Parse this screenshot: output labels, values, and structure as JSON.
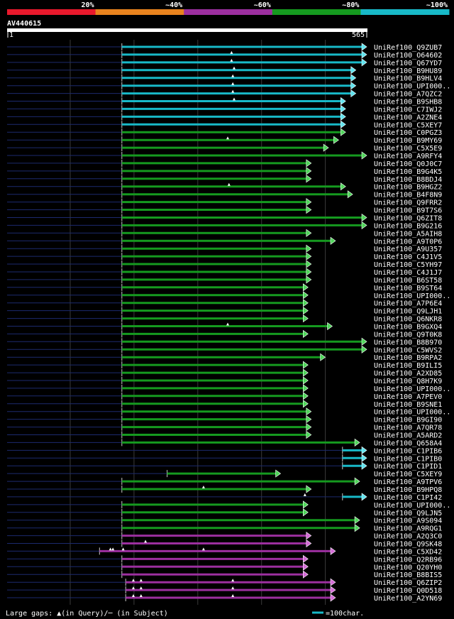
{
  "chart_data": {
    "type": "alignment",
    "query_name": "AV440615",
    "query_start": "1",
    "query_end": "565",
    "query_length": 565,
    "identity_scale": [
      {
        "label": "20%",
        "color": "#e8192c"
      },
      {
        "label": "~40%",
        "color": "#e8831e"
      },
      {
        "label": "~60%",
        "color": "#9c2f9f"
      },
      {
        "label": "~80%",
        "color": "#159a1f"
      },
      {
        "label": "~100%",
        "color": "#18b9c8"
      }
    ],
    "hits": [
      {
        "name": "UniRef100_Q9ZUB7",
        "start": 181,
        "end": 565,
        "color": "cyan"
      },
      {
        "name": "UniRef100_O64602",
        "start": 181,
        "end": 565,
        "color": "cyan",
        "gaps": [
          353
        ]
      },
      {
        "name": "UniRef100_Q67YD7",
        "start": 181,
        "end": 565,
        "color": "cyan",
        "gaps": [
          353
        ]
      },
      {
        "name": "UniRef100_B9HU89",
        "start": 181,
        "end": 548,
        "color": "cyan",
        "gaps": [
          357
        ]
      },
      {
        "name": "UniRef100_B9HLV4",
        "start": 181,
        "end": 548,
        "color": "cyan",
        "gaps": [
          355
        ]
      },
      {
        "name": "UniRef100_UPI000..",
        "start": 181,
        "end": 548,
        "color": "cyan",
        "gaps": [
          355
        ]
      },
      {
        "name": "UniRef100_A7QZC2",
        "start": 181,
        "end": 548,
        "color": "cyan",
        "gaps": [
          355
        ]
      },
      {
        "name": "UniRef100_B9SHB8",
        "start": 181,
        "end": 532,
        "color": "cyan",
        "gaps": [
          357
        ]
      },
      {
        "name": "UniRef100_C7IWJ2",
        "start": 181,
        "end": 532,
        "color": "cyan"
      },
      {
        "name": "UniRef100_A2ZNE4",
        "start": 181,
        "end": 532,
        "color": "cyan"
      },
      {
        "name": "UniRef100_C5XEY7",
        "start": 181,
        "end": 532,
        "color": "cyan"
      },
      {
        "name": "UniRef100_C0PGZ3",
        "start": 181,
        "end": 532,
        "color": "green"
      },
      {
        "name": "UniRef100_B9MY69",
        "start": 181,
        "end": 521,
        "color": "green",
        "gaps": [
          347
        ]
      },
      {
        "name": "UniRef100_C5X5E9",
        "start": 181,
        "end": 505,
        "color": "green"
      },
      {
        "name": "UniRef100_A9RFY4",
        "start": 181,
        "end": 565,
        "color": "green"
      },
      {
        "name": "UniRef100_Q0J0C7",
        "start": 181,
        "end": 478,
        "color": "green"
      },
      {
        "name": "UniRef100_B9G4K5",
        "start": 181,
        "end": 478,
        "color": "green"
      },
      {
        "name": "UniRef100_B8BDJ4",
        "start": 181,
        "end": 478,
        "color": "green"
      },
      {
        "name": "UniRef100_B9HGZ2",
        "start": 181,
        "end": 532,
        "color": "green",
        "gaps": [
          349
        ]
      },
      {
        "name": "UniRef100_B4F8N9",
        "start": 181,
        "end": 543,
        "color": "green"
      },
      {
        "name": "UniRef100_Q9FRR2",
        "start": 181,
        "end": 478,
        "color": "green"
      },
      {
        "name": "UniRef100_B9T7S6",
        "start": 181,
        "end": 478,
        "color": "green"
      },
      {
        "name": "UniRef100_Q6ZIT8",
        "start": 181,
        "end": 565,
        "color": "green"
      },
      {
        "name": "UniRef100_B9G216",
        "start": 181,
        "end": 565,
        "color": "green"
      },
      {
        "name": "UniRef100_A5AIH8",
        "start": 181,
        "end": 478,
        "color": "green"
      },
      {
        "name": "UniRef100_A9T0P6",
        "start": 181,
        "end": 516,
        "color": "green"
      },
      {
        "name": "UniRef100_A9U357",
        "start": 181,
        "end": 478,
        "color": "green"
      },
      {
        "name": "UniRef100_C4J1V5",
        "start": 181,
        "end": 478,
        "color": "green"
      },
      {
        "name": "UniRef100_C5YH97",
        "start": 181,
        "end": 478,
        "color": "green"
      },
      {
        "name": "UniRef100_C4J1J7",
        "start": 181,
        "end": 478,
        "color": "green"
      },
      {
        "name": "UniRef100_B6ST58",
        "start": 181,
        "end": 478,
        "color": "green"
      },
      {
        "name": "UniRef100_B9ST64",
        "start": 181,
        "end": 473,
        "color": "green"
      },
      {
        "name": "UniRef100_UPI000..",
        "start": 181,
        "end": 473,
        "color": "green"
      },
      {
        "name": "UniRef100_A7P6E4",
        "start": 181,
        "end": 473,
        "color": "green"
      },
      {
        "name": "UniRef100_Q9LJH1",
        "start": 181,
        "end": 473,
        "color": "green"
      },
      {
        "name": "UniRef100_Q6NKR8",
        "start": 181,
        "end": 473,
        "color": "green"
      },
      {
        "name": "UniRef100_B9GXQ4",
        "start": 181,
        "end": 511,
        "color": "green",
        "gaps": [
          347
        ]
      },
      {
        "name": "UniRef100_Q9T0K8",
        "start": 181,
        "end": 473,
        "color": "green"
      },
      {
        "name": "UniRef100_B8B970",
        "start": 181,
        "end": 565,
        "color": "green"
      },
      {
        "name": "UniRef100_C5WVS2",
        "start": 181,
        "end": 565,
        "color": "green"
      },
      {
        "name": "UniRef100_B9RPA2",
        "start": 181,
        "end": 500,
        "color": "green"
      },
      {
        "name": "UniRef100_B9ILI5",
        "start": 181,
        "end": 473,
        "color": "green"
      },
      {
        "name": "UniRef100_A2XD85",
        "start": 181,
        "end": 473,
        "color": "green"
      },
      {
        "name": "UniRef100_Q8H7K9",
        "start": 181,
        "end": 473,
        "color": "green"
      },
      {
        "name": "UniRef100_UPI000..",
        "start": 181,
        "end": 473,
        "color": "green"
      },
      {
        "name": "UniRef100_A7PEV0",
        "start": 181,
        "end": 473,
        "color": "green"
      },
      {
        "name": "UniRef100_B9SNE1",
        "start": 181,
        "end": 473,
        "color": "green"
      },
      {
        "name": "UniRef100_UPI000..",
        "start": 181,
        "end": 478,
        "color": "green"
      },
      {
        "name": "UniRef100_B9GI90",
        "start": 181,
        "end": 478,
        "color": "green"
      },
      {
        "name": "UniRef100_A7QR78",
        "start": 181,
        "end": 478,
        "color": "green"
      },
      {
        "name": "UniRef100_A5ARD2",
        "start": 181,
        "end": 478,
        "color": "green"
      },
      {
        "name": "UniRef100_Q658A4",
        "start": 181,
        "end": 554,
        "color": "green"
      },
      {
        "name": "UniRef100_C1PIB6",
        "start": 527,
        "end": 565,
        "color": "cyan"
      },
      {
        "name": "UniRef100_C1PIB0",
        "start": 527,
        "end": 565,
        "color": "cyan"
      },
      {
        "name": "UniRef100_C1PID1",
        "start": 527,
        "end": 565,
        "color": "cyan"
      },
      {
        "name": "UniRef100_C5XEY9",
        "start": 252,
        "end": 430,
        "color": "green"
      },
      {
        "name": "UniRef100_A9TPV6",
        "start": 181,
        "end": 554,
        "color": "green"
      },
      {
        "name": "UniRef100_B9HPQ8",
        "start": 181,
        "end": 478,
        "color": "green",
        "gaps": [
          309
        ]
      },
      {
        "name": "UniRef100_C1PI42",
        "start": 527,
        "end": 565,
        "color": "cyan",
        "gaps": [
          468
        ]
      },
      {
        "name": "UniRef100_UPI000..",
        "start": 181,
        "end": 473,
        "color": "green"
      },
      {
        "name": "UniRef100_Q9LJN5",
        "start": 181,
        "end": 473,
        "color": "green"
      },
      {
        "name": "UniRef100_A9S094",
        "start": 181,
        "end": 554,
        "color": "green"
      },
      {
        "name": "UniRef100_A9RQG1",
        "start": 181,
        "end": 554,
        "color": "green"
      },
      {
        "name": "UniRef100_A2Q3C0",
        "start": 181,
        "end": 478,
        "color": "purple"
      },
      {
        "name": "UniRef100_Q9SK48",
        "start": 181,
        "end": 478,
        "color": "purple",
        "gaps": [
          218
        ]
      },
      {
        "name": "UniRef100_C5XD42",
        "start": 146,
        "end": 516,
        "color": "purple",
        "gaps": [
          163,
          167,
          183,
          309
        ]
      },
      {
        "name": "UniRef100_Q2RB96",
        "start": 181,
        "end": 473,
        "color": "purple"
      },
      {
        "name": "UniRef100_Q20YH0",
        "start": 181,
        "end": 473,
        "color": "purple"
      },
      {
        "name": "UniRef100_B8BIS5",
        "start": 181,
        "end": 473,
        "color": "purple"
      },
      {
        "name": "UniRef100_Q6ZIP2",
        "start": 187,
        "end": 516,
        "color": "purple",
        "gaps": [
          199,
          211,
          355
        ]
      },
      {
        "name": "UniRef100_Q0D518",
        "start": 187,
        "end": 516,
        "color": "purple",
        "gaps": [
          199,
          211,
          355
        ]
      },
      {
        "name": "UniRef100_A2YN69",
        "start": 187,
        "end": 516,
        "color": "purple",
        "gaps": [
          199,
          211,
          355
        ]
      }
    ],
    "footer": {
      "legend_text": "Large gaps: ▲(in Query)/─ (in Subject)",
      "scale_text": "=100char."
    }
  }
}
